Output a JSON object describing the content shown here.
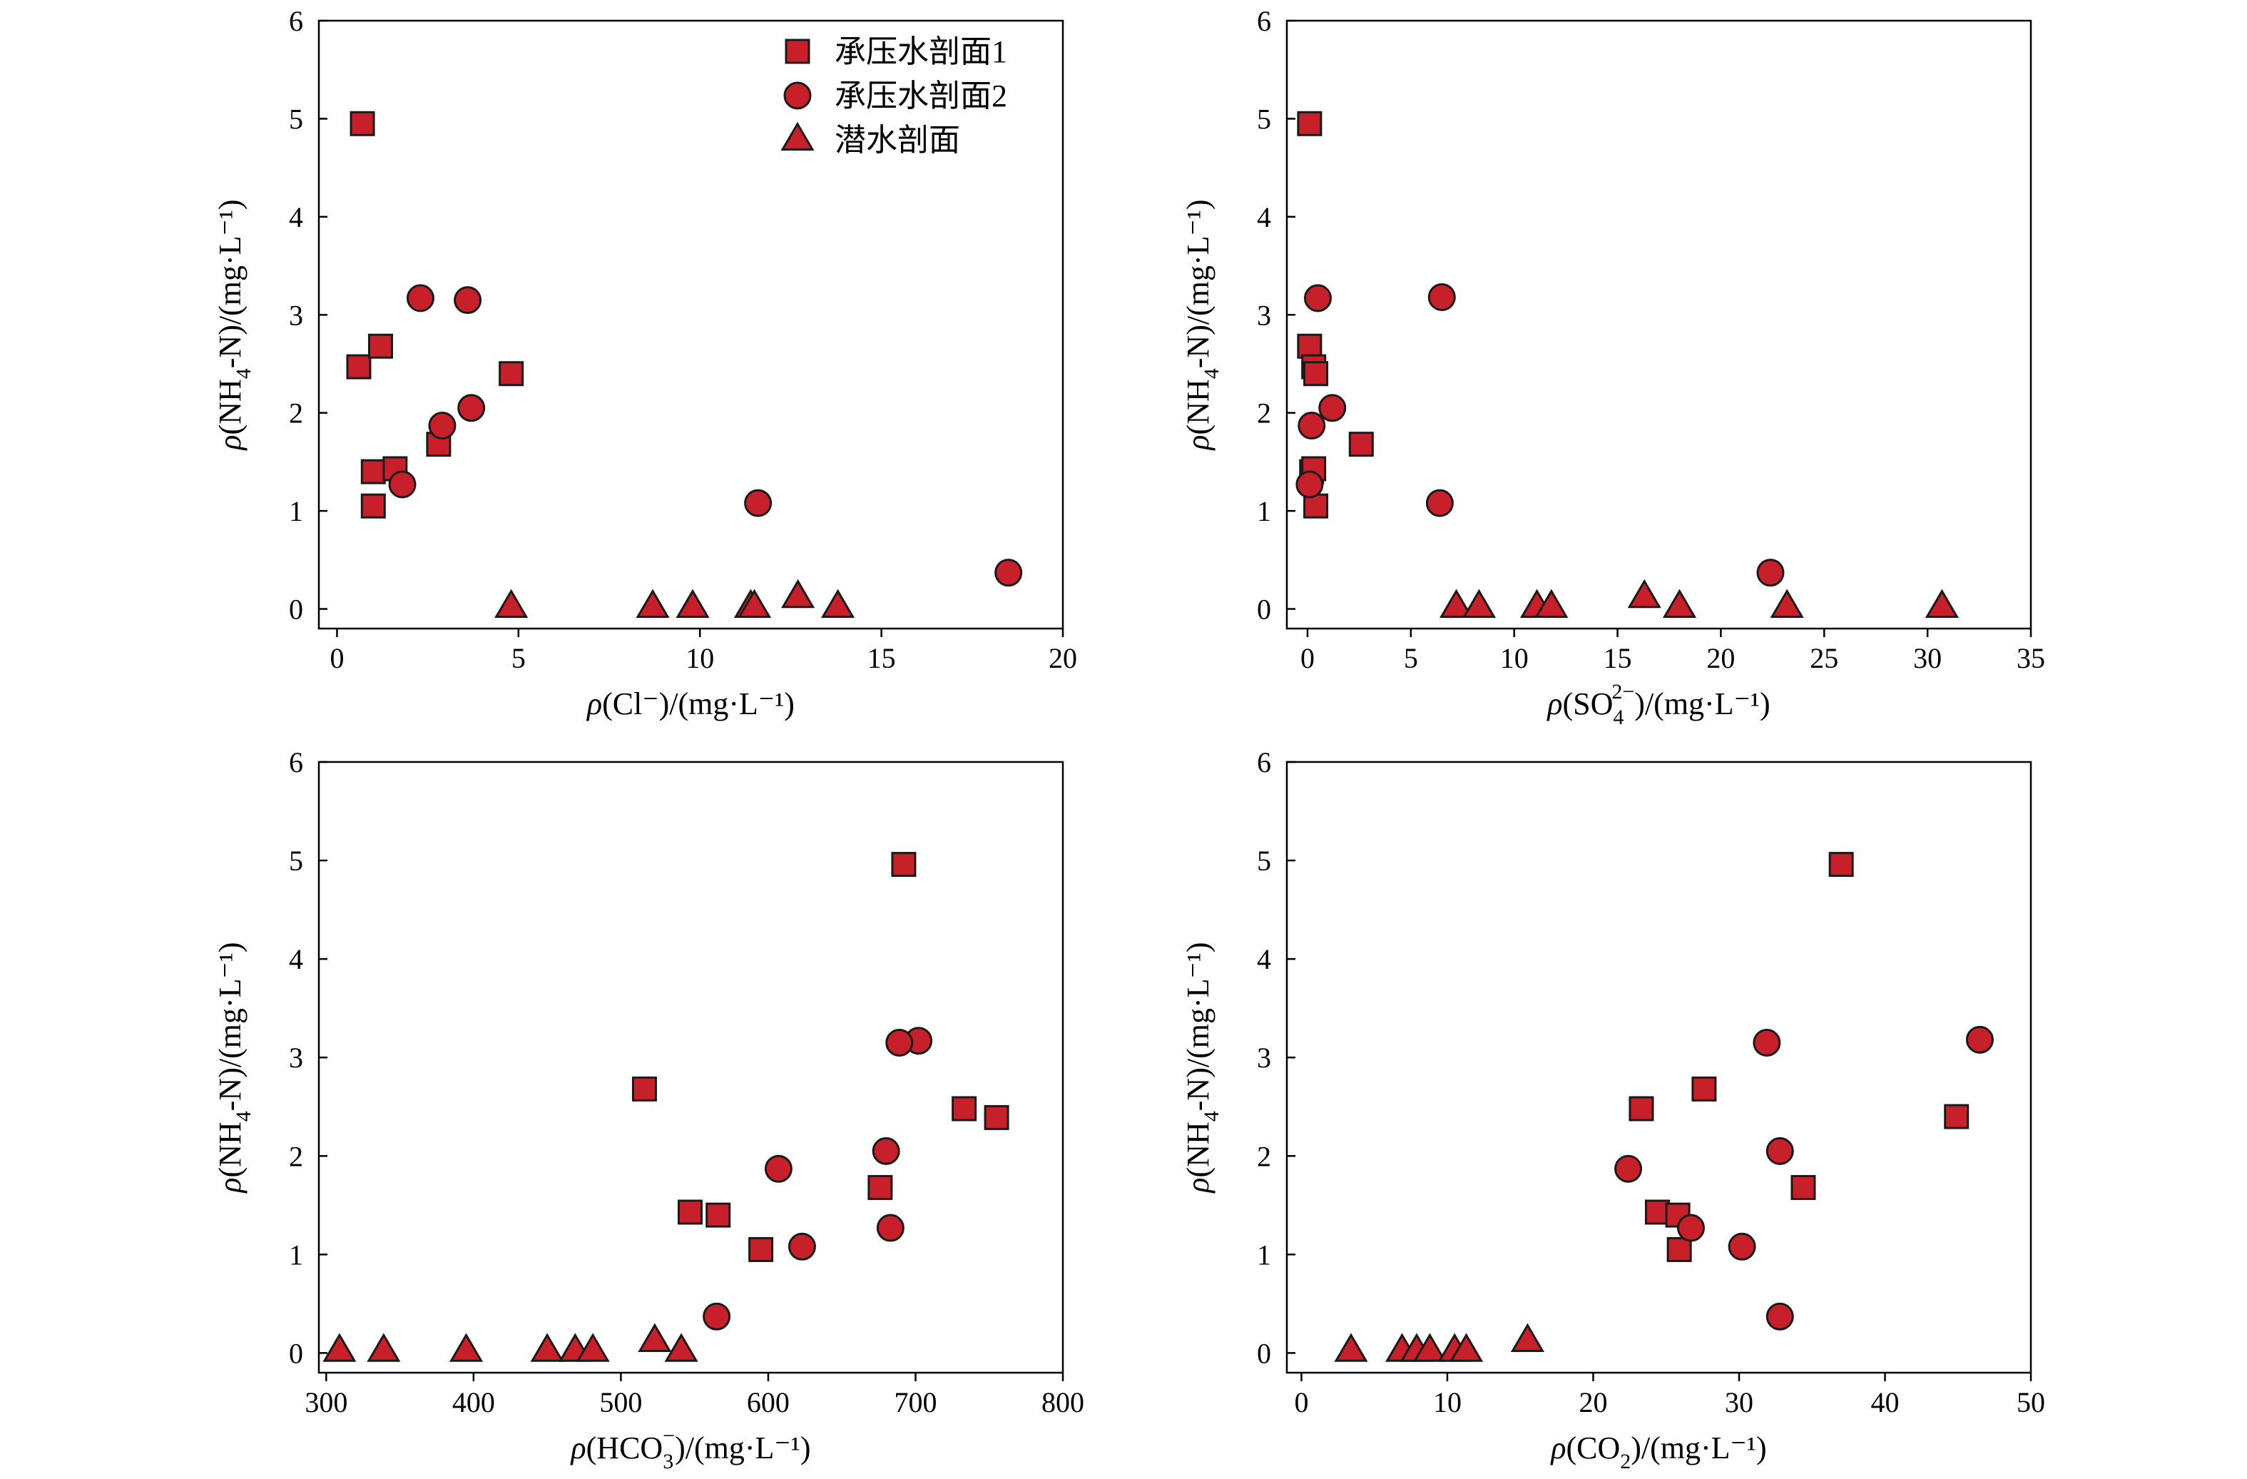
{
  "colors": {
    "marker_fill": "#c8202a",
    "marker_edge": "#1a1a1a",
    "axis": "#000000"
  },
  "legend": {
    "position": "top-right of first panel",
    "entries": [
      {
        "series": "s1",
        "marker": "square",
        "label": "承压水剖面1"
      },
      {
        "series": "s2",
        "marker": "circle",
        "label": "承压水剖面2"
      },
      {
        "series": "s3",
        "marker": "triangle",
        "label": "潜水剖面"
      }
    ]
  },
  "chart_data": [
    {
      "type": "scatter",
      "xlabel": "ρ(Cl⁻)/(mg·L⁻¹)",
      "ylabel": "ρ(NH4-N)/(mg·L⁻¹)",
      "xlim": [
        -0.5,
        20
      ],
      "ylim": [
        -0.2,
        6
      ],
      "xticks": [
        0,
        5,
        10,
        15,
        20
      ],
      "yticks": [
        0,
        1,
        2,
        3,
        4,
        5,
        6
      ],
      "series": [
        {
          "name": "承压水剖面1",
          "marker": "square",
          "points": [
            [
              0.7,
              4.95
            ],
            [
              0.6,
              2.47
            ],
            [
              1.2,
              2.68
            ],
            [
              4.8,
              2.4
            ],
            [
              2.8,
              1.68
            ],
            [
              1.0,
              1.4
            ],
            [
              1.6,
              1.43
            ],
            [
              1.0,
              1.05
            ]
          ]
        },
        {
          "name": "承压水剖面2",
          "marker": "circle",
          "points": [
            [
              2.3,
              3.17
            ],
            [
              3.6,
              3.15
            ],
            [
              2.9,
              1.87
            ],
            [
              3.7,
              2.05
            ],
            [
              1.8,
              1.27
            ],
            [
              11.6,
              1.08
            ],
            [
              18.5,
              0.37
            ]
          ]
        },
        {
          "name": "潜水剖面",
          "marker": "triangle",
          "points": [
            [
              4.8,
              0.02
            ],
            [
              8.7,
              0.02
            ],
            [
              9.8,
              0.02
            ],
            [
              11.4,
              0.02
            ],
            [
              11.5,
              0.02
            ],
            [
              12.7,
              0.12
            ],
            [
              13.8,
              0.02
            ]
          ]
        }
      ]
    },
    {
      "type": "scatter",
      "xlabel": "ρ(SO4 2−)/(mg·L⁻¹)",
      "ylabel": "ρ(NH4-N)/(mg·L⁻¹)",
      "xlim": [
        -1,
        35
      ],
      "ylim": [
        -0.2,
        6
      ],
      "xticks": [
        0,
        5,
        10,
        15,
        20,
        25,
        30,
        35
      ],
      "yticks": [
        0,
        1,
        2,
        3,
        4,
        5,
        6
      ],
      "series": [
        {
          "name": "承压水剖面1",
          "marker": "square",
          "points": [
            [
              0.1,
              4.95
            ],
            [
              0.1,
              2.68
            ],
            [
              0.3,
              2.47
            ],
            [
              0.4,
              2.4
            ],
            [
              2.6,
              1.68
            ],
            [
              0.2,
              1.4
            ],
            [
              0.3,
              1.43
            ],
            [
              0.4,
              1.05
            ]
          ]
        },
        {
          "name": "承压水剖面2",
          "marker": "circle",
          "points": [
            [
              0.5,
              3.17
            ],
            [
              6.5,
              3.18
            ],
            [
              1.2,
              2.05
            ],
            [
              0.2,
              1.87
            ],
            [
              0.1,
              1.27
            ],
            [
              6.4,
              1.08
            ],
            [
              22.4,
              0.37
            ]
          ]
        },
        {
          "name": "潜水剖面",
          "marker": "triangle",
          "points": [
            [
              7.2,
              0.02
            ],
            [
              8.3,
              0.02
            ],
            [
              11.1,
              0.02
            ],
            [
              11.8,
              0.02
            ],
            [
              16.3,
              0.12
            ],
            [
              18.0,
              0.02
            ],
            [
              23.2,
              0.02
            ],
            [
              30.7,
              0.02
            ]
          ]
        }
      ]
    },
    {
      "type": "scatter",
      "xlabel": "ρ(HCO3⁻)/(mg·L⁻¹)",
      "ylabel": "ρ(NH4-N)/(mg·L⁻¹)",
      "xlim": [
        295,
        800
      ],
      "ylim": [
        -0.2,
        6
      ],
      "xticks": [
        300,
        400,
        500,
        600,
        700,
        800
      ],
      "yticks": [
        0,
        1,
        2,
        3,
        4,
        5,
        6
      ],
      "series": [
        {
          "name": "承压水剖面1",
          "marker": "square",
          "points": [
            [
              692,
              4.96
            ],
            [
              516,
              2.68
            ],
            [
              733,
              2.48
            ],
            [
              755,
              2.39
            ],
            [
              676,
              1.68
            ],
            [
              547,
              1.43
            ],
            [
              566,
              1.4
            ],
            [
              595,
              1.05
            ]
          ]
        },
        {
          "name": "承压水剖面2",
          "marker": "circle",
          "points": [
            [
              702,
              3.17
            ],
            [
              689,
              3.15
            ],
            [
              680,
              2.05
            ],
            [
              607,
              1.87
            ],
            [
              683,
              1.27
            ],
            [
              623,
              1.08
            ],
            [
              565,
              0.37
            ]
          ]
        },
        {
          "name": "潜水剖面",
          "marker": "triangle",
          "points": [
            [
              309,
              0.02
            ],
            [
              339,
              0.02
            ],
            [
              395,
              0.02
            ],
            [
              450,
              0.02
            ],
            [
              469,
              0.02
            ],
            [
              481,
              0.02
            ],
            [
              523,
              0.12
            ],
            [
              541,
              0.02
            ]
          ]
        }
      ]
    },
    {
      "type": "scatter",
      "xlabel": "ρ(CO2)/(mg·L⁻¹)",
      "ylabel": "ρ(NH4-N)/(mg·L⁻¹)",
      "xlim": [
        -1,
        50
      ],
      "ylim": [
        -0.2,
        6
      ],
      "xticks": [
        0,
        10,
        20,
        30,
        40,
        50
      ],
      "yticks": [
        0,
        1,
        2,
        3,
        4,
        5,
        6
      ],
      "series": [
        {
          "name": "承压水剖面1",
          "marker": "square",
          "points": [
            [
              37.0,
              4.96
            ],
            [
              23.3,
              2.48
            ],
            [
              27.6,
              2.68
            ],
            [
              44.9,
              2.4
            ],
            [
              34.4,
              1.68
            ],
            [
              24.4,
              1.43
            ],
            [
              25.8,
              1.4
            ],
            [
              25.9,
              1.05
            ]
          ]
        },
        {
          "name": "承压水剖面2",
          "marker": "circle",
          "points": [
            [
              46.5,
              3.18
            ],
            [
              31.9,
              3.15
            ],
            [
              32.8,
              2.05
            ],
            [
              22.4,
              1.87
            ],
            [
              26.7,
              1.27
            ],
            [
              30.2,
              1.08
            ],
            [
              32.8,
              0.37
            ]
          ]
        },
        {
          "name": "潜水剖面",
          "marker": "triangle",
          "points": [
            [
              3.4,
              0.02
            ],
            [
              6.9,
              0.02
            ],
            [
              7.9,
              0.02
            ],
            [
              8.8,
              0.02
            ],
            [
              10.5,
              0.02
            ],
            [
              11.3,
              0.02
            ],
            [
              15.5,
              0.12
            ]
          ]
        }
      ]
    }
  ]
}
